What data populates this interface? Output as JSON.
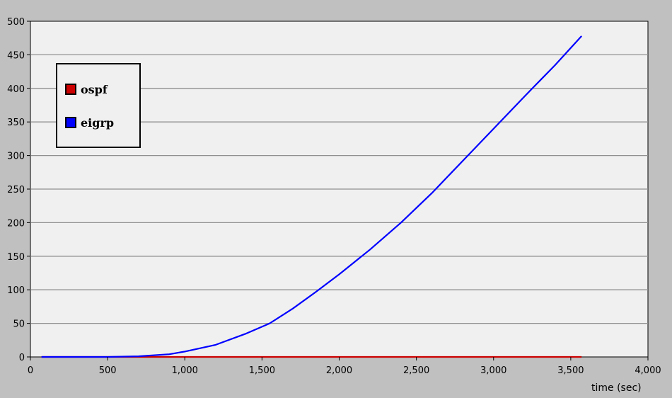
{
  "chart_data": {
    "type": "line",
    "title": "",
    "xlabel": "time (sec)",
    "ylabel": "",
    "xlim": [
      0,
      4000
    ],
    "ylim": [
      0,
      500
    ],
    "xticks": [
      0,
      500,
      1000,
      1500,
      2000,
      2500,
      3000,
      3500,
      4000
    ],
    "xtick_labels": [
      "0",
      "500",
      "1,000",
      "1,500",
      "2,000",
      "2,500",
      "3,000",
      "3,500",
      "4,000"
    ],
    "yticks": [
      0,
      50,
      100,
      150,
      200,
      250,
      300,
      350,
      400,
      450,
      500
    ],
    "ytick_labels": [
      "0",
      "50",
      "100",
      "150",
      "200",
      "250",
      "300",
      "350",
      "400",
      "450",
      "500"
    ],
    "grid": true,
    "legend_position": "top-left",
    "series": [
      {
        "name": "ospf",
        "color": "#cc0000",
        "x": [
          72,
          500,
          1000,
          1500,
          2000,
          2500,
          3000,
          3570
        ],
        "y": [
          0,
          0,
          0,
          0,
          0,
          0,
          0,
          0
        ]
      },
      {
        "name": "eigrp",
        "color": "#0000ff",
        "x": [
          72,
          500,
          700,
          900,
          1000,
          1200,
          1400,
          1550,
          1700,
          1850,
          2000,
          2200,
          2400,
          2600,
          2800,
          3000,
          3200,
          3400,
          3570
        ],
        "y": [
          0,
          0,
          1,
          4,
          8,
          18,
          35,
          50,
          72,
          97,
          123,
          160,
          200,
          244,
          292,
          340,
          388,
          435,
          478
        ]
      }
    ]
  }
}
